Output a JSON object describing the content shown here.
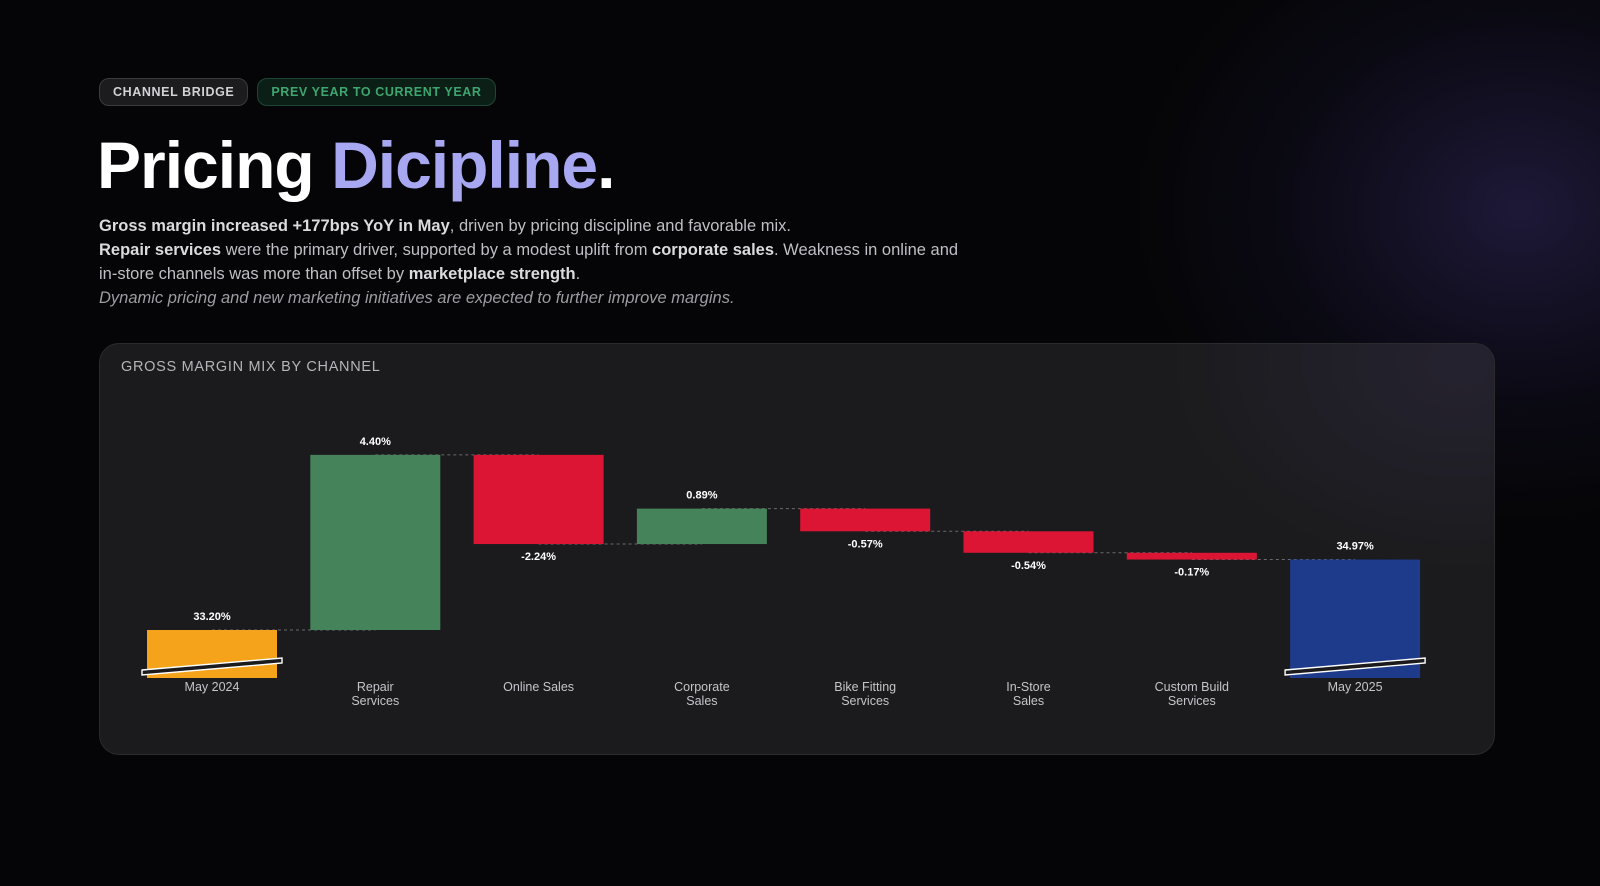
{
  "badges": {
    "channel": "CHANNEL BRIDGE",
    "period": "PREV YEAR TO CURRENT YEAR"
  },
  "title": {
    "prefix": "Pricing",
    "accent": "Dicipline",
    "dot": "."
  },
  "description": {
    "line1_bold": "Gross margin increased +177bps YoY in May",
    "line1_rest": ", driven by pricing discipline and favorable mix.",
    "line2_bold_a": "Repair services",
    "line2_mid": " were the primary driver, supported by a modest uplift from ",
    "line2_bold_b": "corporate sales",
    "line2_rest": ". Weakness in online and in-store channels was more than offset by ",
    "line2_bold_c": "marketplace strength",
    "line2_end": ".",
    "note": "Dynamic pricing and new marketing initiatives are expected to further improve margins."
  },
  "card": {
    "title": "GROSS MARGIN MIX BY CHANNEL"
  },
  "colors": {
    "start": "#f5a31a",
    "increase": "#45835b",
    "decrease": "#dc1535",
    "end": "#1e3a8a",
    "connector": "#6a6a70",
    "label": "#ffffff",
    "axis_label": "#c4c4ca"
  },
  "chart_data": {
    "type": "bar",
    "subtype": "waterfall",
    "title": "GROSS MARGIN MIX BY CHANNEL",
    "unit": "%",
    "categories": [
      [
        "May 2024"
      ],
      [
        "Repair",
        "Services"
      ],
      [
        "Online Sales"
      ],
      [
        "Corporate",
        "Sales"
      ],
      [
        "Bike Fitting",
        "Services"
      ],
      [
        "In-Store",
        "Sales"
      ],
      [
        "Custom Build",
        "Services"
      ],
      [
        "May 2025"
      ]
    ],
    "steps": [
      {
        "kind": "start",
        "value": 33.2,
        "label": "33.20%"
      },
      {
        "kind": "delta",
        "value": 4.4,
        "label": "4.40%"
      },
      {
        "kind": "delta",
        "value": -2.24,
        "label": "-2.24%"
      },
      {
        "kind": "delta",
        "value": 0.89,
        "label": "0.89%"
      },
      {
        "kind": "delta",
        "value": -0.57,
        "label": "-0.57%"
      },
      {
        "kind": "delta",
        "value": -0.54,
        "label": "-0.54%"
      },
      {
        "kind": "delta",
        "value": -0.17,
        "label": "-0.17%"
      },
      {
        "kind": "end",
        "value": 34.97,
        "label": "34.97%"
      }
    ],
    "y_axis_break": true,
    "grid": false,
    "legend": "none"
  }
}
